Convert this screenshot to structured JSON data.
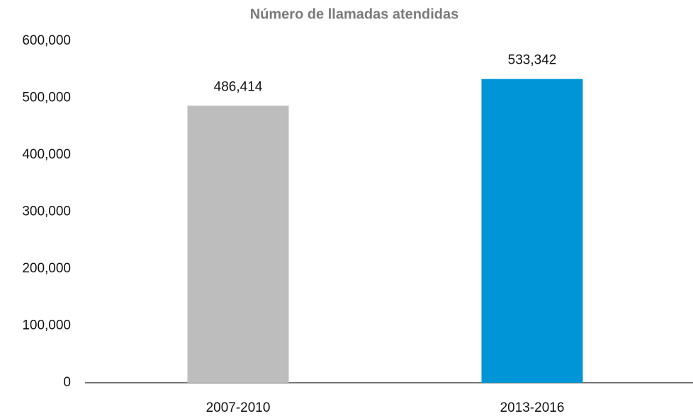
{
  "chart_data": {
    "type": "bar",
    "title": "Número de llamadas atendidas",
    "categories": [
      "2007-2010",
      "2013-2016"
    ],
    "values": [
      486414,
      533342
    ],
    "value_labels": [
      "486,414",
      "533,342"
    ],
    "colors": [
      "#bdbdbd",
      "#0095d6"
    ],
    "ylim": [
      0,
      600000
    ],
    "yticks": [
      0,
      {
        "value": 100000,
        "label": "100,000"
      },
      {
        "value": 200000,
        "label": "200,000"
      },
      {
        "value": 300000,
        "label": "300,000"
      },
      {
        "value": 400000,
        "label": "400,000"
      },
      {
        "value": 500000,
        "label": "500,000"
      },
      {
        "value": 600000,
        "label": "600,000"
      }
    ],
    "grid": false
  }
}
